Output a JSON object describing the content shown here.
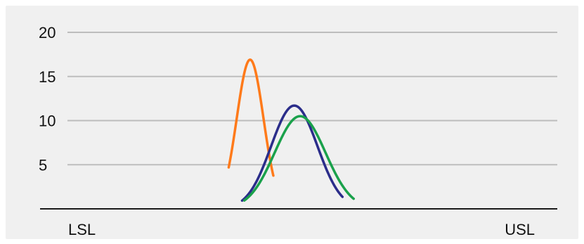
{
  "chart_data": {
    "type": "line",
    "title": "",
    "xlabel": "",
    "ylabel": "",
    "ylim": [
      0,
      20
    ],
    "y_ticks": [
      5,
      10,
      15,
      20
    ],
    "y_tick_labels": [
      "5",
      "10",
      "15",
      "20"
    ],
    "grid": true,
    "x_markers": [
      {
        "label": "LSL",
        "x": 0
      },
      {
        "label": "USL",
        "x": 100
      }
    ],
    "xlim": [
      0,
      100
    ],
    "series": [
      {
        "color": "#ff7a1a",
        "mean": 40.3,
        "sd": 3.0,
        "y_min": 0,
        "peak": 16.9,
        "x_start": 35.5,
        "x_end": 45.5
      },
      {
        "color": "#2b2d8a",
        "mean": 50.2,
        "sd": 5.2,
        "y_min": 0,
        "peak": 11.7,
        "x_start": 38.5,
        "x_end": 61.0
      },
      {
        "color": "#1aa14b",
        "mean": 51.5,
        "sd": 5.7,
        "y_min": 0,
        "peak": 10.5,
        "x_start": 39.0,
        "x_end": 63.5
      }
    ]
  }
}
